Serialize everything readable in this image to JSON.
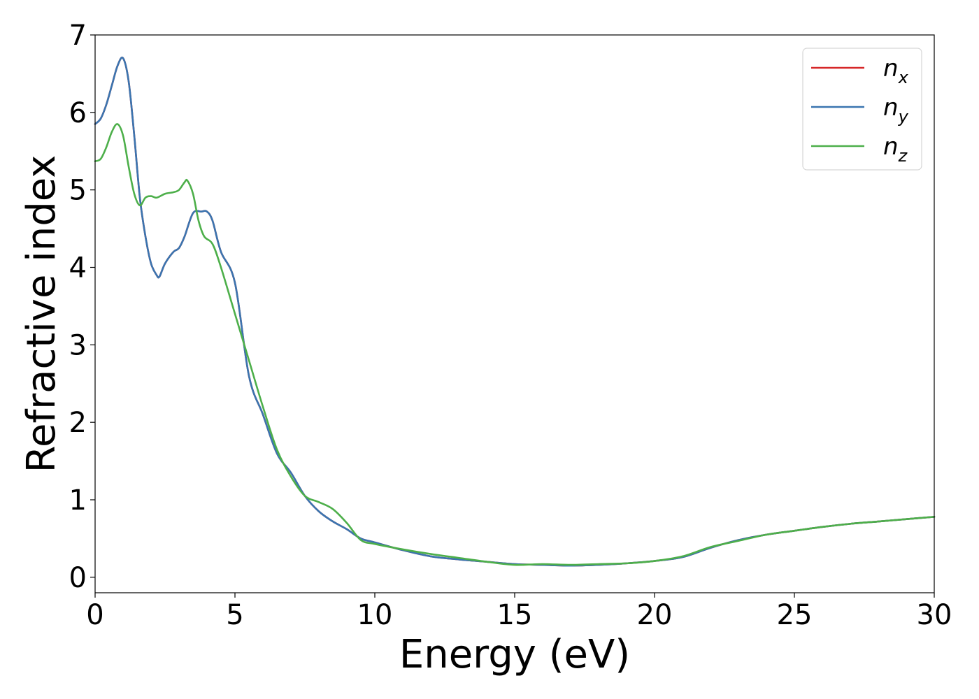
{
  "chart_data": {
    "type": "line",
    "title": "",
    "xlabel": "Energy (eV)",
    "ylabel": "Refractive index",
    "xlim": [
      0,
      30
    ],
    "ylim": [
      -0.2,
      7
    ],
    "xticks": [
      "0",
      "5",
      "10",
      "15",
      "20",
      "25",
      "30"
    ],
    "yticks": [
      "0",
      "1",
      "2",
      "3",
      "4",
      "5",
      "6",
      "7"
    ],
    "grid": false,
    "legend_position": "top-right",
    "series": [
      {
        "name": "n_x",
        "legend_base": "n",
        "legend_sub": "x",
        "color": "#d62728",
        "x": [
          0,
          0.2,
          0.4,
          0.6,
          0.8,
          1.0,
          1.2,
          1.4,
          1.6,
          1.8,
          2.0,
          2.2,
          2.3,
          2.5,
          2.8,
          3.0,
          3.2,
          3.5,
          3.8,
          4.0,
          4.2,
          4.5,
          5.0,
          5.5,
          6.0,
          6.5,
          7.0,
          7.5,
          8.0,
          8.5,
          9.0,
          9.5,
          10.0,
          11.0,
          12.0,
          13.0,
          14.0,
          15.0,
          16.0,
          17.0,
          18.0,
          19.0,
          20.0,
          21.0,
          22.0,
          23.0,
          24.0,
          25.0,
          26.0,
          27.0,
          28.0,
          29.0,
          30.0
        ],
        "y": [
          5.85,
          5.92,
          6.1,
          6.35,
          6.6,
          6.7,
          6.4,
          5.7,
          4.9,
          4.4,
          4.05,
          3.9,
          3.88,
          4.05,
          4.2,
          4.25,
          4.4,
          4.7,
          4.72,
          4.72,
          4.6,
          4.2,
          3.8,
          2.6,
          2.1,
          1.6,
          1.35,
          1.05,
          0.85,
          0.72,
          0.62,
          0.5,
          0.45,
          0.35,
          0.27,
          0.23,
          0.2,
          0.17,
          0.16,
          0.15,
          0.16,
          0.18,
          0.21,
          0.26,
          0.38,
          0.48,
          0.55,
          0.6,
          0.65,
          0.69,
          0.72,
          0.75,
          0.78
        ]
      },
      {
        "name": "n_y",
        "legend_base": "n",
        "legend_sub": "y",
        "color": "#3a75b0",
        "x": [
          0,
          0.2,
          0.4,
          0.6,
          0.8,
          1.0,
          1.2,
          1.4,
          1.6,
          1.8,
          2.0,
          2.2,
          2.3,
          2.5,
          2.8,
          3.0,
          3.2,
          3.5,
          3.8,
          4.0,
          4.2,
          4.5,
          5.0,
          5.5,
          6.0,
          6.5,
          7.0,
          7.5,
          8.0,
          8.5,
          9.0,
          9.5,
          10.0,
          11.0,
          12.0,
          13.0,
          14.0,
          15.0,
          16.0,
          17.0,
          18.0,
          19.0,
          20.0,
          21.0,
          22.0,
          23.0,
          24.0,
          25.0,
          26.0,
          27.0,
          28.0,
          29.0,
          30.0
        ],
        "y": [
          5.85,
          5.92,
          6.1,
          6.35,
          6.6,
          6.7,
          6.4,
          5.7,
          4.9,
          4.4,
          4.05,
          3.9,
          3.88,
          4.05,
          4.2,
          4.25,
          4.4,
          4.7,
          4.72,
          4.72,
          4.6,
          4.2,
          3.8,
          2.6,
          2.1,
          1.6,
          1.35,
          1.05,
          0.85,
          0.72,
          0.62,
          0.5,
          0.45,
          0.35,
          0.27,
          0.23,
          0.2,
          0.17,
          0.16,
          0.15,
          0.16,
          0.18,
          0.21,
          0.26,
          0.38,
          0.48,
          0.55,
          0.6,
          0.65,
          0.69,
          0.72,
          0.75,
          0.78
        ]
      },
      {
        "name": "n_z",
        "legend_base": "n",
        "legend_sub": "z",
        "color": "#4daf4a",
        "x": [
          0,
          0.2,
          0.4,
          0.6,
          0.8,
          1.0,
          1.2,
          1.4,
          1.6,
          1.8,
          2.0,
          2.2,
          2.5,
          2.8,
          3.0,
          3.2,
          3.3,
          3.5,
          3.7,
          3.9,
          4.2,
          4.5,
          5.0,
          5.5,
          6.0,
          6.5,
          7.0,
          7.5,
          8.0,
          8.5,
          9.0,
          9.5,
          10.0,
          11.0,
          12.0,
          13.0,
          14.0,
          15.0,
          16.0,
          17.0,
          18.0,
          19.0,
          20.0,
          21.0,
          22.0,
          23.0,
          24.0,
          25.0,
          26.0,
          27.0,
          28.0,
          29.0,
          30.0
        ],
        "y": [
          5.37,
          5.4,
          5.55,
          5.75,
          5.85,
          5.7,
          5.3,
          4.95,
          4.8,
          4.9,
          4.92,
          4.9,
          4.95,
          4.97,
          5.0,
          5.1,
          5.12,
          4.95,
          4.6,
          4.4,
          4.3,
          4.0,
          3.4,
          2.8,
          2.2,
          1.65,
          1.3,
          1.05,
          0.97,
          0.88,
          0.7,
          0.48,
          0.43,
          0.36,
          0.3,
          0.25,
          0.2,
          0.16,
          0.17,
          0.16,
          0.17,
          0.18,
          0.21,
          0.27,
          0.39,
          0.47,
          0.55,
          0.6,
          0.65,
          0.69,
          0.72,
          0.75,
          0.78
        ]
      }
    ]
  }
}
